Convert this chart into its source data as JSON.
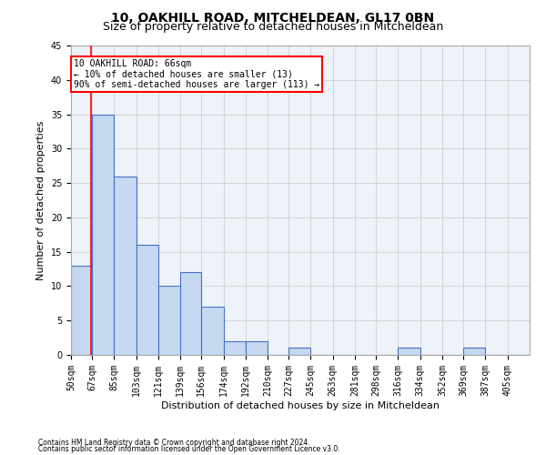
{
  "title1": "10, OAKHILL ROAD, MITCHELDEAN, GL17 0BN",
  "title2": "Size of property relative to detached houses in Mitcheldean",
  "xlabel": "Distribution of detached houses by size in Mitcheldean",
  "ylabel": "Number of detached properties",
  "footnote1": "Contains HM Land Registry data © Crown copyright and database right 2024.",
  "footnote2": "Contains public sector information licensed under the Open Government Licence v3.0.",
  "bin_labels": [
    "50sqm",
    "67sqm",
    "85sqm",
    "103sqm",
    "121sqm",
    "139sqm",
    "156sqm",
    "174sqm",
    "192sqm",
    "210sqm",
    "227sqm",
    "245sqm",
    "263sqm",
    "281sqm",
    "298sqm",
    "316sqm",
    "334sqm",
    "352sqm",
    "369sqm",
    "387sqm",
    "405sqm"
  ],
  "bin_edges": [
    50,
    67,
    85,
    103,
    121,
    139,
    156,
    174,
    192,
    210,
    227,
    245,
    263,
    281,
    298,
    316,
    334,
    352,
    369,
    387,
    405,
    423
  ],
  "bar_values": [
    13,
    35,
    26,
    16,
    10,
    12,
    7,
    2,
    2,
    0,
    1,
    0,
    0,
    0,
    0,
    1,
    0,
    0,
    1,
    0,
    0
  ],
  "bar_color": "#c5d8f0",
  "bar_edge_color": "#4472c4",
  "grid_color": "#d0d0d0",
  "bg_color": "#eef2f9",
  "red_line_x": 66,
  "annotation_line1": "10 OAKHILL ROAD: 66sqm",
  "annotation_line2": "← 10% of detached houses are smaller (13)",
  "annotation_line3": "90% of semi-detached houses are larger (113) →",
  "ylim": [
    0,
    45
  ],
  "yticks": [
    0,
    5,
    10,
    15,
    20,
    25,
    30,
    35,
    40,
    45
  ],
  "title1_fontsize": 10,
  "title2_fontsize": 9,
  "xlabel_fontsize": 8,
  "ylabel_fontsize": 8,
  "tick_fontsize": 7,
  "annot_fontsize": 7,
  "footnote_fontsize": 5.5
}
